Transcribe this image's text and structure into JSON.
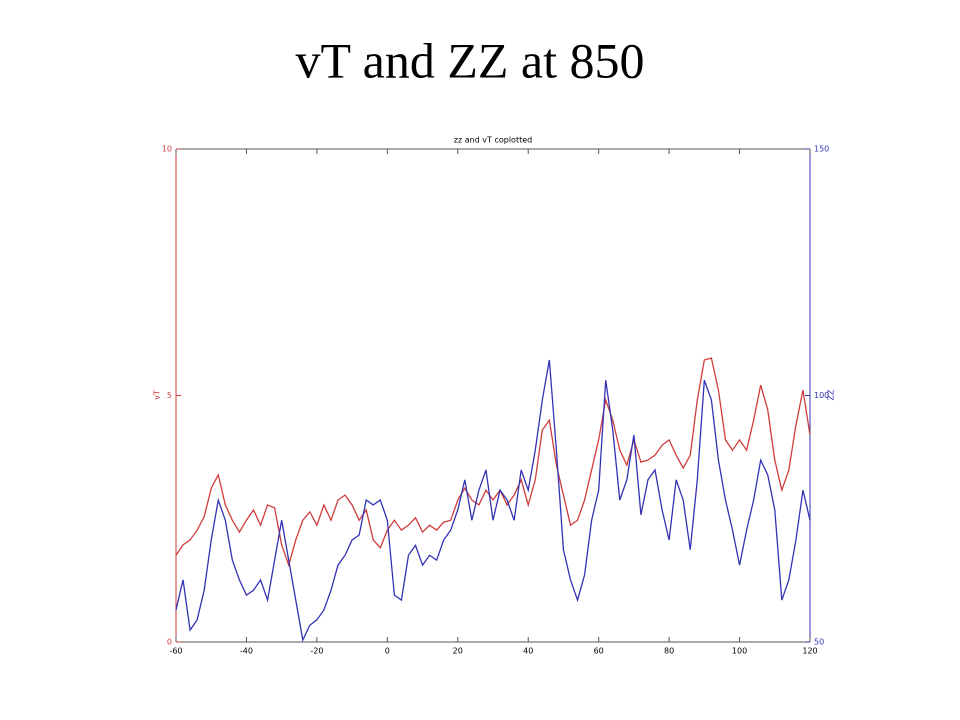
{
  "title": "vT and ZZ at 850",
  "chart_data": {
    "type": "line",
    "title": "zz and vT coplotted",
    "ylabel": "vT",
    "y2label": "ZZ",
    "x": [
      -60,
      -58,
      -56,
      -54,
      -52,
      -50,
      -48,
      -46,
      -44,
      -42,
      -40,
      -38,
      -36,
      -34,
      -32,
      -30,
      -28,
      -26,
      -24,
      -22,
      -20,
      -18,
      -16,
      -14,
      -12,
      -10,
      -8,
      -6,
      -4,
      -2,
      0,
      2,
      4,
      6,
      8,
      10,
      12,
      14,
      16,
      18,
      20,
      22,
      24,
      26,
      28,
      30,
      32,
      34,
      36,
      38,
      40,
      42,
      44,
      46,
      48,
      50,
      52,
      54,
      56,
      58,
      60,
      62,
      64,
      66,
      68,
      70,
      72,
      74,
      76,
      78,
      80,
      82,
      84,
      86,
      88,
      90,
      92,
      94,
      96,
      98,
      100,
      102,
      104,
      106,
      108,
      110,
      112,
      114,
      116,
      118,
      120
    ],
    "series": [
      {
        "color": "#d03c3c",
        "values": [
          1.76,
          1.97,
          2.07,
          2.27,
          2.54,
          3.12,
          3.39,
          2.78,
          2.47,
          2.23,
          2.47,
          2.68,
          2.37,
          2.78,
          2.72,
          1.97,
          1.56,
          2.07,
          2.47,
          2.64,
          2.37,
          2.78,
          2.47,
          2.88,
          2.98,
          2.78,
          2.47,
          2.68,
          2.07,
          1.91,
          2.27,
          2.47,
          2.27,
          2.37,
          2.52,
          2.23,
          2.37,
          2.27,
          2.43,
          2.47,
          2.88,
          3.12,
          2.88,
          2.78,
          3.08,
          2.88,
          3.08,
          2.78,
          2.98,
          3.29,
          2.78,
          3.29,
          4.3,
          4.5,
          3.59,
          2.98,
          2.37,
          2.47,
          2.88,
          3.49,
          4.1,
          4.91,
          4.5,
          3.89,
          3.59,
          4.1,
          3.65,
          3.69,
          3.79,
          3.99,
          4.1,
          3.79,
          3.53,
          3.79,
          4.91,
          5.72,
          5.76,
          5.11,
          4.1,
          3.89,
          4.1,
          3.89,
          4.5,
          5.21,
          4.71,
          3.69,
          3.08,
          3.49,
          4.4,
          5.11,
          4.2
        ]
      },
      {
        "color": "#3232b4",
        "axis": "y2",
        "values": [
          56.5,
          62.6,
          52.4,
          54.5,
          60.5,
          70.7,
          78.8,
          74.7,
          66.6,
          62.6,
          59.5,
          60.5,
          62.6,
          58.5,
          66.6,
          74.7,
          66.6,
          58.5,
          50.4,
          53.4,
          54.5,
          56.5,
          60.5,
          65.6,
          67.6,
          70.7,
          71.7,
          78.8,
          77.8,
          78.8,
          74.7,
          59.5,
          58.5,
          67.6,
          69.6,
          65.6,
          67.6,
          66.6,
          70.7,
          72.7,
          76.8,
          82.9,
          74.7,
          80.8,
          84.9,
          74.7,
          80.8,
          78.8,
          74.7,
          84.9,
          80.8,
          88.9,
          99.1,
          107.2,
          88.9,
          68.7,
          62.6,
          58.5,
          63.6,
          74.7,
          80.8,
          103.1,
          93.0,
          78.8,
          82.9,
          92.0,
          75.8,
          82.9,
          84.9,
          76.8,
          70.7,
          82.9,
          78.8,
          68.7,
          82.9,
          103.1,
          99.1,
          86.9,
          78.8,
          72.7,
          65.6,
          72.7,
          78.8,
          86.9,
          83.9,
          76.8,
          58.5,
          62.6,
          70.7,
          80.8,
          74.7
        ]
      }
    ],
    "xlim": [
      -60,
      120
    ],
    "xticks": [
      -60,
      -40,
      -20,
      0,
      20,
      40,
      60,
      80,
      100,
      120
    ],
    "ylim": [
      0,
      10
    ],
    "yticks": [
      0,
      5,
      10
    ],
    "y2lim": [
      50,
      150
    ],
    "y2ticks": [
      50,
      100,
      150
    ]
  }
}
